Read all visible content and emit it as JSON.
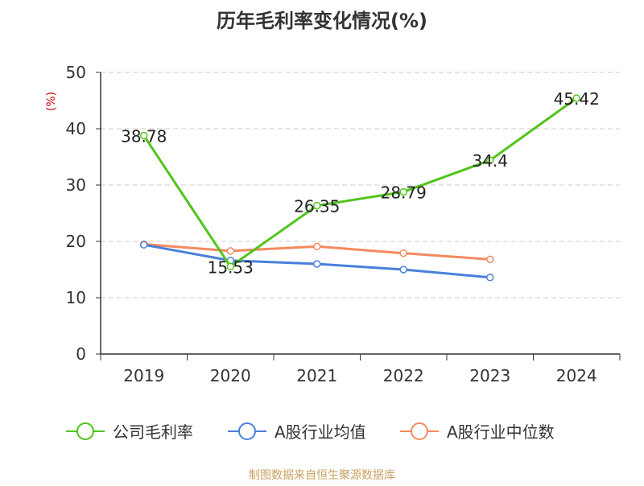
{
  "chart_data": {
    "type": "line",
    "title": "历年毛利率变化情况(%)",
    "ylabel": "(%)",
    "xlabel": "",
    "categories": [
      "2019",
      "2020",
      "2021",
      "2022",
      "2023",
      "2024"
    ],
    "ylim": [
      0,
      50
    ],
    "yticks": [
      0,
      10,
      20,
      30,
      40,
      50
    ],
    "grid": true,
    "legend_position": "bottom",
    "series": [
      {
        "name": "公司毛利率",
        "color": "#52c41a",
        "values": [
          38.78,
          15.53,
          26.35,
          28.79,
          34.4,
          45.42
        ],
        "labels": [
          "38.78",
          "15.53",
          "26.35",
          "28.79",
          "34.4",
          "45.42"
        ]
      },
      {
        "name": "A股行业均值",
        "color": "#4a7fdb",
        "values": [
          19.4,
          16.6,
          16.0,
          15.0,
          13.6,
          null
        ]
      },
      {
        "name": "A股行业中位数",
        "color": "#f4895f",
        "values": [
          19.5,
          18.3,
          19.1,
          17.9,
          16.8,
          null
        ]
      }
    ],
    "source": "制图数据来自恒生聚源数据库"
  },
  "colors": {
    "title": "#333333",
    "axis": "#333333",
    "ylabel": "#cc0000",
    "grid": "#cccccc",
    "source": "#c8a060"
  }
}
